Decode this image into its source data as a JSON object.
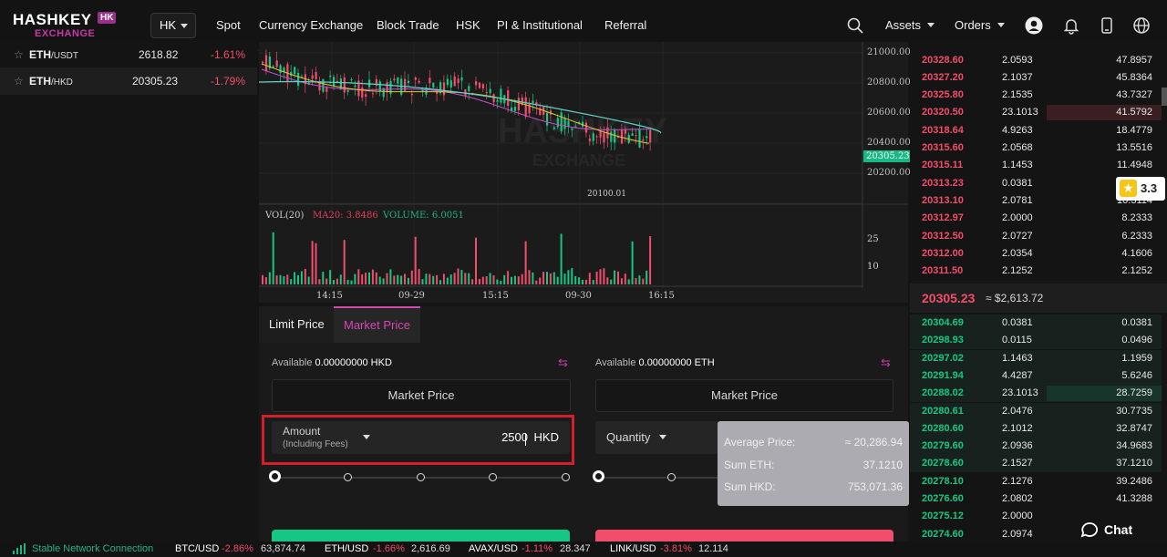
{
  "header": {
    "logo_text": "HASHKEY",
    "logo_badge": "HK",
    "logo_sub": "EXCHANGE",
    "region": "HK",
    "nav": [
      "Spot",
      "Currency Exchange",
      "Block Trade",
      "HSK",
      "PI & Institutional",
      "Referral"
    ],
    "assets_label": "Assets",
    "orders_label": "Orders",
    "icons": [
      "search-icon",
      "user-icon",
      "bell-icon",
      "mobile-icon",
      "globe-icon"
    ]
  },
  "market_list": [
    {
      "base": "ETH",
      "quote": "/USDT",
      "price": "2618.82",
      "change": "-1.61%"
    },
    {
      "base": "ETH",
      "quote": "/HKD",
      "price": "20305.23",
      "change": "-1.79%"
    }
  ],
  "chart": {
    "price_axis": [
      "21000.00",
      "20800.00",
      "20600.00",
      "20400.00",
      "20200.00"
    ],
    "current_price": "20305.23",
    "low_label": "20100.01",
    "vol_title": "VOL(20)",
    "vol_ma": "MA20: 3.8486",
    "vol_volume": "VOLUME: 6.0051",
    "vol_axis": [
      "25",
      "10"
    ],
    "time_axis": [
      "14:15",
      "09-29",
      "15:15",
      "09-30",
      "16:15"
    ],
    "watermark": "HASHKEY",
    "watermark_sub": "EXCHANGE"
  },
  "trade": {
    "tabs": [
      "Limit Price",
      "Market Price"
    ],
    "buy_available_label": "Available",
    "buy_available_value": "0.00000000 HKD",
    "sell_available_label": "Available",
    "sell_available_value": "0.00000000 ETH",
    "buy_price_box": "Market Price",
    "sell_price_box": "Market Price",
    "amount_label": "Amount",
    "amount_sub": "(Including Fees)",
    "amount_value": "2500",
    "amount_unit": "HKD",
    "quantity_label": "Quantity",
    "accent": "#d149b4",
    "buy_color": "#16c784",
    "sell_color": "#f24e6b"
  },
  "tooltip": {
    "avg_label": "Average Price:",
    "avg_value": "≈ 20,286.94",
    "sum_eth_label": "Sum ETH:",
    "sum_eth_value": "37.1210",
    "sum_hkd_label": "Sum HKD:",
    "sum_hkd_value": "753,071.36"
  },
  "orderbook": {
    "asks": [
      {
        "price": "20328.60",
        "qty": "2.0593",
        "total": "47.8957"
      },
      {
        "price": "20327.20",
        "qty": "2.1037",
        "total": "45.8364"
      },
      {
        "price": "20325.80",
        "qty": "2.1535",
        "total": "43.7327"
      },
      {
        "price": "20320.50",
        "qty": "23.1013",
        "total": "41.5792"
      },
      {
        "price": "20318.64",
        "qty": "4.9263",
        "total": "18.4779"
      },
      {
        "price": "20315.60",
        "qty": "2.0568",
        "total": "13.5516"
      },
      {
        "price": "20315.11",
        "qty": "1.1453",
        "total": "11.4948"
      },
      {
        "price": "20313.23",
        "qty": "0.0381",
        "total": ""
      },
      {
        "price": "20313.10",
        "qty": "2.0781",
        "total": "10.3114"
      },
      {
        "price": "20312.97",
        "qty": "2.0000",
        "total": "8.2333"
      },
      {
        "price": "20312.50",
        "qty": "2.0727",
        "total": "6.2333"
      },
      {
        "price": "20312.00",
        "qty": "2.0354",
        "total": "4.1606"
      },
      {
        "price": "20311.50",
        "qty": "2.1252",
        "total": "2.1252"
      }
    ],
    "last_price": "20305.23",
    "last_price_usd": "≈ $2,613.72",
    "bids": [
      {
        "price": "20304.69",
        "qty": "0.0381",
        "total": "0.0381"
      },
      {
        "price": "20298.93",
        "qty": "0.0115",
        "total": "0.0496"
      },
      {
        "price": "20297.02",
        "qty": "1.1463",
        "total": "1.1959"
      },
      {
        "price": "20291.94",
        "qty": "4.4287",
        "total": "5.6246"
      },
      {
        "price": "20288.02",
        "qty": "23.1013",
        "total": "28.7259"
      },
      {
        "price": "20280.61",
        "qty": "2.0476",
        "total": "30.7735"
      },
      {
        "price": "20280.60",
        "qty": "2.1012",
        "total": "32.8747"
      },
      {
        "price": "20279.60",
        "qty": "2.0936",
        "total": "34.9683"
      },
      {
        "price": "20278.60",
        "qty": "2.1527",
        "total": "37.1210"
      },
      {
        "price": "20278.10",
        "qty": "2.1276",
        "total": "39.2486"
      },
      {
        "price": "20276.60",
        "qty": "2.0802",
        "total": "41.3288"
      },
      {
        "price": "20275.12",
        "qty": "2.0000",
        "total": ""
      },
      {
        "price": "20274.60",
        "qty": "2.0974",
        "total": ""
      }
    ]
  },
  "rating_badge": "3.3",
  "chat_label": "Chat",
  "status": {
    "network": "Stable Network Connection",
    "tickers": [
      {
        "pair": "BTC/USD",
        "change": "-2.86%",
        "price": "63,874.74"
      },
      {
        "pair": "ETH/USD",
        "change": "-1.66%",
        "price": "2,616.69"
      },
      {
        "pair": "AVAX/USD",
        "change": "-1.11%",
        "price": "28.347"
      },
      {
        "pair": "LINK/USD",
        "change": "-3.81%",
        "price": "12.114"
      }
    ]
  }
}
